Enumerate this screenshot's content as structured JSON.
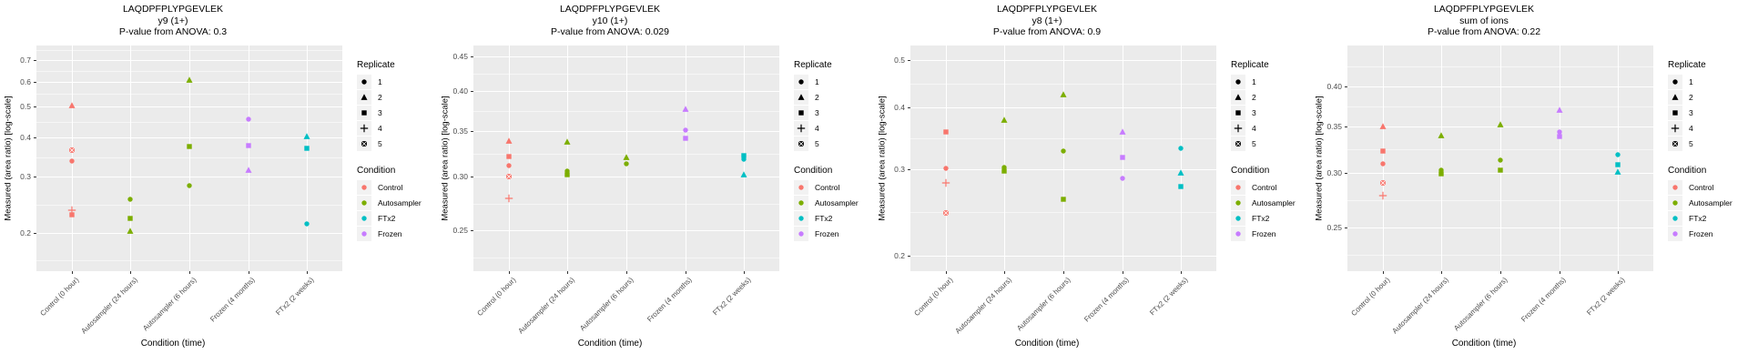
{
  "shared": {
    "ylabel": "Measured (area ratio) [log-scale]",
    "xlabel": "Condition (time)",
    "categories": [
      "Control (0 hour)",
      "Autosampler (24 hours)",
      "Autosampler (6 hours)",
      "Frozen (4 months)",
      "FTx2 (2 weeks)"
    ],
    "legend": {
      "replicate_title": "Replicate",
      "replicates": [
        {
          "label": "1",
          "shape": "circle"
        },
        {
          "label": "2",
          "shape": "triangle"
        },
        {
          "label": "3",
          "shape": "square"
        },
        {
          "label": "4",
          "shape": "plus"
        },
        {
          "label": "5",
          "shape": "square-cross"
        }
      ],
      "condition_title": "Condition",
      "conditions": [
        {
          "label": "Control",
          "color": "#F8766D"
        },
        {
          "label": "Autosampler",
          "color": "#7CAE00"
        },
        {
          "label": "FTx2",
          "color": "#00BFC4"
        },
        {
          "label": "Frozen",
          "color": "#C77CFF"
        }
      ]
    },
    "colors": {
      "panel_bg": "#EBEBEB",
      "grid": "#FFFFFF",
      "tick_text": "#4D4D4D",
      "legend_key_bg": "#F2F2F2"
    }
  },
  "chart_data": [
    {
      "type": "scatter",
      "title": "LAQDPFPLYPGEVLEK",
      "subtitle": "y9 (1+)",
      "stat_line": "P-value from ANOVA: 0.3",
      "anova_pvalue": 0.3,
      "xlabel": "Condition (time)",
      "ylabel": "Measured (area ratio) [log-scale]",
      "log_scale": true,
      "legend_position": "right",
      "yticks": [
        "0.2",
        "0.3",
        "0.4",
        "0.5",
        "0.6",
        "0.7"
      ],
      "ylim": [
        0.151,
        0.779
      ],
      "points": [
        {
          "cat": 0,
          "condition": "Control",
          "replicate": 2,
          "value": 0.505
        },
        {
          "cat": 0,
          "condition": "Control",
          "replicate": 5,
          "value": 0.365
        },
        {
          "cat": 0,
          "condition": "Control",
          "replicate": 1,
          "value": 0.337
        },
        {
          "cat": 0,
          "condition": "Control",
          "replicate": 4,
          "value": 0.235
        },
        {
          "cat": 0,
          "condition": "Control",
          "replicate": 3,
          "value": 0.228
        },
        {
          "cat": 1,
          "condition": "Autosampler",
          "replicate": 1,
          "value": 0.254
        },
        {
          "cat": 1,
          "condition": "Autosampler",
          "replicate": 3,
          "value": 0.221
        },
        {
          "cat": 1,
          "condition": "Autosampler",
          "replicate": 2,
          "value": 0.202
        },
        {
          "cat": 2,
          "condition": "Autosampler",
          "replicate": 2,
          "value": 0.607
        },
        {
          "cat": 2,
          "condition": "Autosampler",
          "replicate": 3,
          "value": 0.374
        },
        {
          "cat": 2,
          "condition": "Autosampler",
          "replicate": 1,
          "value": 0.281
        },
        {
          "cat": 3,
          "condition": "Frozen",
          "replicate": 1,
          "value": 0.455
        },
        {
          "cat": 3,
          "condition": "Frozen",
          "replicate": 3,
          "value": 0.376
        },
        {
          "cat": 3,
          "condition": "Frozen",
          "replicate": 2,
          "value": 0.314
        },
        {
          "cat": 4,
          "condition": "FTx2",
          "replicate": 2,
          "value": 0.402
        },
        {
          "cat": 4,
          "condition": "FTx2",
          "replicate": 3,
          "value": 0.368
        },
        {
          "cat": 4,
          "condition": "FTx2",
          "replicate": 1,
          "value": 0.213
        }
      ]
    },
    {
      "type": "scatter",
      "title": "LAQDPFPLYPGEVLEK",
      "subtitle": "y10 (1+)",
      "stat_line": "P-value from ANOVA: 0.029",
      "anova_pvalue": 0.029,
      "xlabel": "Condition (time)",
      "ylabel": "Measured (area ratio) [log-scale]",
      "log_scale": true,
      "legend_position": "right",
      "yticks": [
        "0.25",
        "0.30",
        "0.35",
        "0.40",
        "0.45"
      ],
      "ylim": [
        0.218,
        0.467
      ],
      "points": [
        {
          "cat": 0,
          "condition": "Control",
          "replicate": 2,
          "value": 0.338
        },
        {
          "cat": 0,
          "condition": "Control",
          "replicate": 3,
          "value": 0.321
        },
        {
          "cat": 0,
          "condition": "Control",
          "replicate": 1,
          "value": 0.311
        },
        {
          "cat": 0,
          "condition": "Control",
          "replicate": 5,
          "value": 0.3
        },
        {
          "cat": 0,
          "condition": "Control",
          "replicate": 4,
          "value": 0.279
        },
        {
          "cat": 1,
          "condition": "Autosampler",
          "replicate": 2,
          "value": 0.337
        },
        {
          "cat": 1,
          "condition": "Autosampler",
          "replicate": 1,
          "value": 0.306
        },
        {
          "cat": 1,
          "condition": "Autosampler",
          "replicate": 3,
          "value": 0.302
        },
        {
          "cat": 2,
          "condition": "Autosampler",
          "replicate": 2,
          "value": 0.32
        },
        {
          "cat": 2,
          "condition": "Autosampler",
          "replicate": 1,
          "value": 0.313
        },
        {
          "cat": 3,
          "condition": "Frozen",
          "replicate": 2,
          "value": 0.377
        },
        {
          "cat": 3,
          "condition": "Frozen",
          "replicate": 1,
          "value": 0.351
        },
        {
          "cat": 3,
          "condition": "Frozen",
          "replicate": 3,
          "value": 0.341
        },
        {
          "cat": 4,
          "condition": "FTx2",
          "replicate": 3,
          "value": 0.322
        },
        {
          "cat": 4,
          "condition": "FTx2",
          "replicate": 1,
          "value": 0.318
        },
        {
          "cat": 4,
          "condition": "FTx2",
          "replicate": 2,
          "value": 0.302
        }
      ]
    },
    {
      "type": "scatter",
      "title": "LAQDPFPLYPGEVLEK",
      "subtitle": "y8 (1+)",
      "stat_line": "P-value from ANOVA: 0.9",
      "anova_pvalue": 0.9,
      "xlabel": "Condition (time)",
      "ylabel": "Measured (area ratio) [log-scale]",
      "log_scale": true,
      "legend_position": "right",
      "yticks": [
        "0.2",
        "0.3",
        "0.4",
        "0.5"
      ],
      "ylim": [
        0.186,
        0.534
      ],
      "points": [
        {
          "cat": 0,
          "condition": "Control",
          "replicate": 3,
          "value": 0.356
        },
        {
          "cat": 0,
          "condition": "Control",
          "replicate": 1,
          "value": 0.301
        },
        {
          "cat": 0,
          "condition": "Control",
          "replicate": 4,
          "value": 0.281
        },
        {
          "cat": 0,
          "condition": "Control",
          "replicate": 5,
          "value": 0.244
        },
        {
          "cat": 1,
          "condition": "Autosampler",
          "replicate": 2,
          "value": 0.377
        },
        {
          "cat": 1,
          "condition": "Autosampler",
          "replicate": 1,
          "value": 0.302
        },
        {
          "cat": 1,
          "condition": "Autosampler",
          "replicate": 3,
          "value": 0.297
        },
        {
          "cat": 2,
          "condition": "Autosampler",
          "replicate": 2,
          "value": 0.424
        },
        {
          "cat": 2,
          "condition": "Autosampler",
          "replicate": 1,
          "value": 0.326
        },
        {
          "cat": 2,
          "condition": "Autosampler",
          "replicate": 3,
          "value": 0.26
        },
        {
          "cat": 3,
          "condition": "Frozen",
          "replicate": 2,
          "value": 0.357
        },
        {
          "cat": 3,
          "condition": "Frozen",
          "replicate": 3,
          "value": 0.317
        },
        {
          "cat": 3,
          "condition": "Frozen",
          "replicate": 1,
          "value": 0.287
        },
        {
          "cat": 4,
          "condition": "FTx2",
          "replicate": 1,
          "value": 0.33
        },
        {
          "cat": 4,
          "condition": "FTx2",
          "replicate": 2,
          "value": 0.294
        },
        {
          "cat": 4,
          "condition": "FTx2",
          "replicate": 3,
          "value": 0.276
        }
      ]
    },
    {
      "type": "scatter",
      "title": "LAQDPFPLYPGEVLEK",
      "subtitle": "sum of ions",
      "stat_line": "P-value from ANOVA: 0.22",
      "anova_pvalue": 0.22,
      "xlabel": "Condition (time)",
      "ylabel": "Measured (area ratio) [log-scale]",
      "log_scale": true,
      "legend_position": "right",
      "yticks": [
        "0.25",
        "0.30",
        "0.35",
        "0.40"
      ],
      "ylim": [
        0.216,
        0.458
      ],
      "points": [
        {
          "cat": 0,
          "condition": "Control",
          "replicate": 2,
          "value": 0.35
        },
        {
          "cat": 0,
          "condition": "Control",
          "replicate": 3,
          "value": 0.322
        },
        {
          "cat": 0,
          "condition": "Control",
          "replicate": 1,
          "value": 0.309
        },
        {
          "cat": 0,
          "condition": "Control",
          "replicate": 5,
          "value": 0.29
        },
        {
          "cat": 0,
          "condition": "Control",
          "replicate": 4,
          "value": 0.278
        },
        {
          "cat": 1,
          "condition": "Autosampler",
          "replicate": 2,
          "value": 0.339
        },
        {
          "cat": 1,
          "condition": "Autosampler",
          "replicate": 1,
          "value": 0.302
        },
        {
          "cat": 1,
          "condition": "Autosampler",
          "replicate": 3,
          "value": 0.299
        },
        {
          "cat": 2,
          "condition": "Autosampler",
          "replicate": 2,
          "value": 0.352
        },
        {
          "cat": 2,
          "condition": "Autosampler",
          "replicate": 1,
          "value": 0.313
        },
        {
          "cat": 2,
          "condition": "Autosampler",
          "replicate": 3,
          "value": 0.302
        },
        {
          "cat": 3,
          "condition": "Frozen",
          "replicate": 2,
          "value": 0.369
        },
        {
          "cat": 3,
          "condition": "Frozen",
          "replicate": 1,
          "value": 0.343
        },
        {
          "cat": 3,
          "condition": "Frozen",
          "replicate": 3,
          "value": 0.338
        },
        {
          "cat": 4,
          "condition": "FTx2",
          "replicate": 1,
          "value": 0.318
        },
        {
          "cat": 4,
          "condition": "FTx2",
          "replicate": 3,
          "value": 0.308
        },
        {
          "cat": 4,
          "condition": "FTx2",
          "replicate": 2,
          "value": 0.301
        }
      ]
    }
  ]
}
